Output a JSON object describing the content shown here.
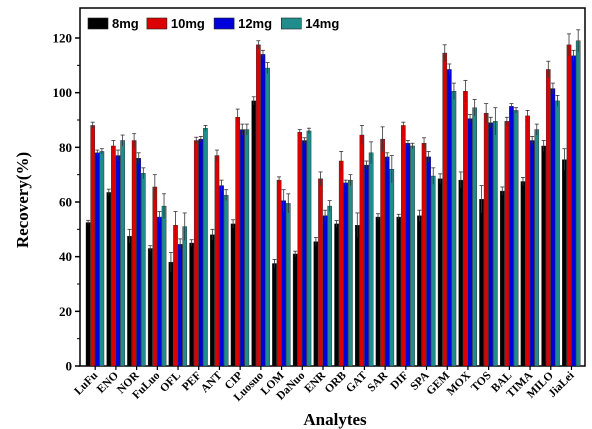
{
  "chart_data": {
    "type": "bar",
    "xlabel": "Analytes",
    "ylabel": "Recovery(%)",
    "ylim": [
      0,
      125
    ],
    "yticks": [
      0,
      20,
      40,
      60,
      80,
      100,
      120
    ],
    "grid": false,
    "legend_position": "top-left",
    "categories": [
      "LuFu",
      "ENO",
      "NOR",
      "FuLuo",
      "OFL",
      "PEF",
      "ANT",
      "CIP",
      "Luosuo",
      "LOM",
      "DaNuo",
      "ENR",
      "ORB",
      "GAT",
      "SAR",
      "DIF",
      "SPA",
      "GEM",
      "MOX",
      "TOS",
      "BAL",
      "TIMA",
      "MILO",
      "JiaLei"
    ],
    "series": [
      {
        "name": "8mg",
        "color": "#000000",
        "values": [
          52.5,
          63.5,
          47.5,
          43,
          38,
          45,
          48,
          52,
          97,
          37.5,
          41,
          45.5,
          52,
          51.5,
          54.5,
          54.5,
          55,
          68.5,
          68,
          61,
          64,
          67.5,
          80.5,
          75.5
        ],
        "errors": [
          0.8,
          1.2,
          2.5,
          1.0,
          3.5,
          1.2,
          2.0,
          1.5,
          1.5,
          1.5,
          1.0,
          1.5,
          1.2,
          4.5,
          1.2,
          1.0,
          2.0,
          1.8,
          3.0,
          5.0,
          1.5,
          1.5,
          2.0,
          4.0
        ]
      },
      {
        "name": "10mg",
        "color": "#dd0000",
        "values": [
          88,
          80.5,
          82.5,
          65.5,
          51.5,
          82.5,
          77,
          91,
          117.5,
          68,
          85.5,
          68.5,
          75,
          84.5,
          83,
          88,
          81.5,
          114.5,
          100.5,
          92.5,
          89.5,
          91.5,
          108.5,
          117.5
        ],
        "errors": [
          1.2,
          2.0,
          2.5,
          4.5,
          5.0,
          1.2,
          2.0,
          3.0,
          1.5,
          1.2,
          1.0,
          2.5,
          3.5,
          3.5,
          4.5,
          1.2,
          2.0,
          3.0,
          4.0,
          3.5,
          1.5,
          2.0,
          3.0,
          4.0
        ]
      },
      {
        "name": "12mg",
        "color": "#0000dd",
        "values": [
          78,
          77,
          76,
          54.5,
          44.5,
          83,
          66,
          86.5,
          114,
          60.5,
          82.5,
          55,
          67,
          73.5,
          76.5,
          81.5,
          76.5,
          108.5,
          90.5,
          89,
          95,
          82.5,
          101.5,
          113.5
        ],
        "errors": [
          1.0,
          2.0,
          2.0,
          2.0,
          2.0,
          1.0,
          2.0,
          2.0,
          1.5,
          4.0,
          1.0,
          2.0,
          1.0,
          1.5,
          1.5,
          1.0,
          2.0,
          2.0,
          1.5,
          2.0,
          1.0,
          1.5,
          2.0,
          2.0
        ]
      },
      {
        "name": "14mg",
        "color": "#208c8c",
        "values": [
          78.5,
          82.5,
          70.5,
          58.5,
          51,
          87,
          62.5,
          86.5,
          109,
          59.5,
          86,
          58.5,
          68,
          78,
          72,
          80.5,
          69.5,
          100.5,
          94.5,
          89.5,
          93.5,
          86.5,
          97,
          119
        ],
        "errors": [
          1.0,
          2.0,
          2.0,
          4.5,
          5.0,
          1.0,
          2.0,
          2.0,
          2.0,
          3.5,
          1.0,
          2.0,
          2.0,
          4.0,
          5.0,
          1.0,
          3.0,
          3.0,
          3.0,
          5.0,
          1.0,
          2.0,
          2.0,
          4.0
        ]
      }
    ]
  }
}
